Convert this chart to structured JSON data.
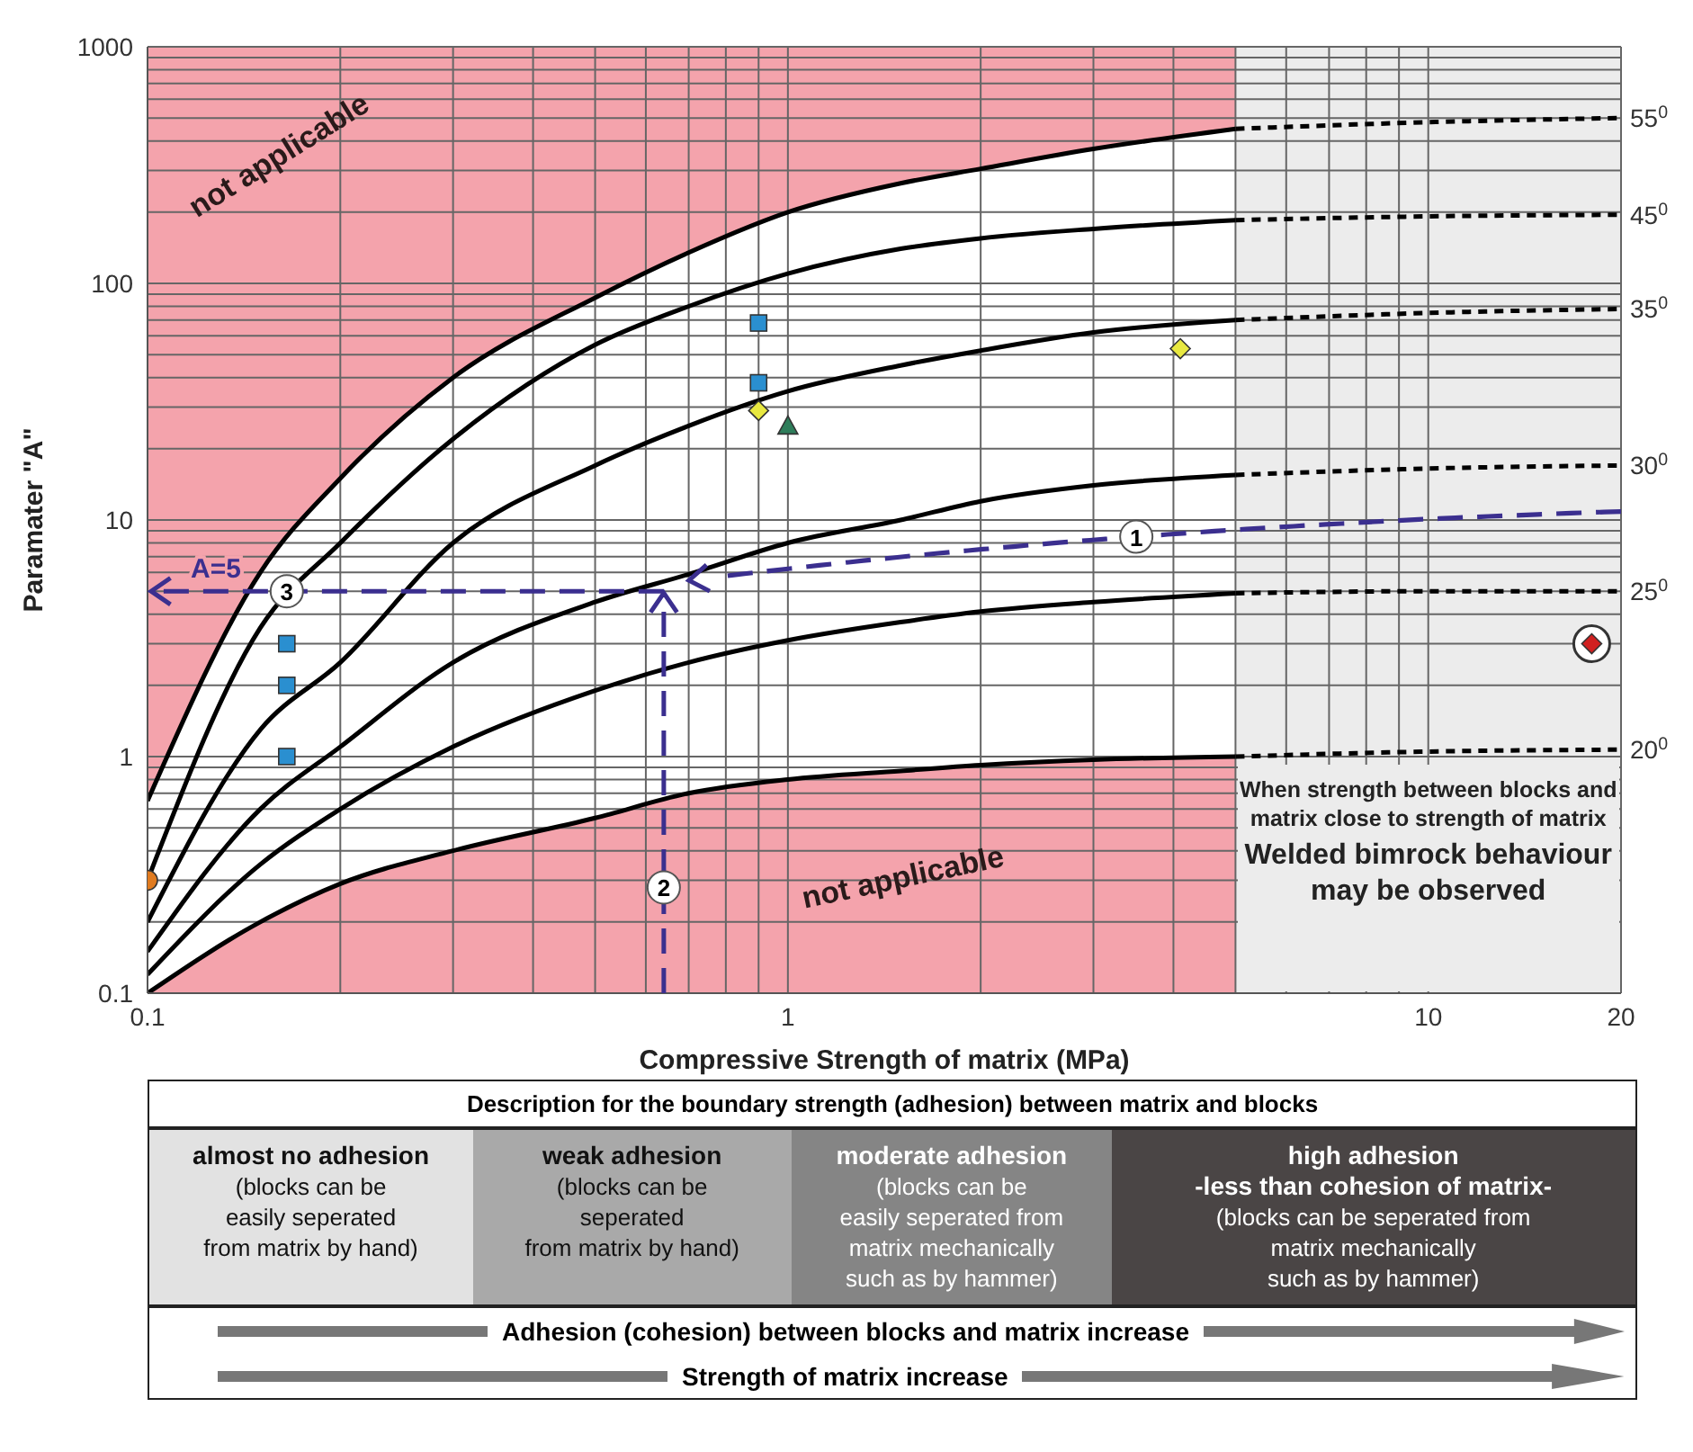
{
  "chart_data": {
    "type": "line",
    "xlabel": "Compressive Strength of matrix  (MPa)",
    "ylabel": "Paramater \"A\"",
    "log": "xy",
    "grid": true,
    "xlim": [
      0.1,
      20
    ],
    "ylim": [
      0.1,
      1000
    ],
    "xticks": [
      0.1,
      {
        "value": 0.2,
        "label": null
      },
      {
        "value": 0.3,
        "label": null
      },
      {
        "value": 0.4,
        "label": null
      },
      {
        "value": 0.5,
        "label": null
      },
      {
        "value": 0.6,
        "label": null
      },
      {
        "value": 0.7,
        "label": null
      },
      {
        "value": 0.8,
        "label": null
      },
      {
        "value": 0.9,
        "label": null
      },
      1,
      {
        "value": 2,
        "label": null
      },
      {
        "value": 3,
        "label": null
      },
      {
        "value": 4,
        "label": null
      },
      {
        "value": 5,
        "label": null
      },
      {
        "value": 6,
        "label": null
      },
      {
        "value": 7,
        "label": null
      },
      {
        "value": 8,
        "label": null
      },
      {
        "value": 9,
        "label": null
      },
      10,
      20
    ],
    "yticks": [
      0.1,
      {
        "value": 0.2,
        "label": null
      },
      {
        "value": 0.3,
        "label": null
      },
      {
        "value": 0.4,
        "label": null
      },
      {
        "value": 0.5,
        "label": null
      },
      {
        "value": 0.6,
        "label": null
      },
      {
        "value": 0.7,
        "label": null
      },
      {
        "value": 0.8,
        "label": null
      },
      {
        "value": 0.9,
        "label": null
      },
      1,
      {
        "value": 2,
        "label": null
      },
      {
        "value": 3,
        "label": null
      },
      {
        "value": 4,
        "label": null
      },
      {
        "value": 5,
        "label": null
      },
      {
        "value": 6,
        "label": null
      },
      {
        "value": 7,
        "label": null
      },
      {
        "value": 8,
        "label": null
      },
      {
        "value": 9,
        "label": null
      },
      10,
      {
        "value": 20,
        "label": null
      },
      {
        "value": 30,
        "label": null
      },
      {
        "value": 40,
        "label": null
      },
      {
        "value": 50,
        "label": null
      },
      {
        "value": 60,
        "label": null
      },
      {
        "value": 70,
        "label": null
      },
      {
        "value": 80,
        "label": null
      },
      {
        "value": 90,
        "label": null
      },
      100,
      {
        "value": 200,
        "label": null
      },
      {
        "value": 300,
        "label": null
      },
      {
        "value": 400,
        "label": null
      },
      {
        "value": 500,
        "label": null
      },
      {
        "value": 600,
        "label": null
      },
      {
        "value": 700,
        "label": null
      },
      {
        "value": 800,
        "label": null
      },
      {
        "value": 900,
        "label": null
      },
      1000
    ],
    "bands": [
      {
        "axis": "x",
        "from": 0.1,
        "to": 5,
        "color": "#f4a3ac"
      },
      {
        "axis": "x",
        "from": 5,
        "to": 20,
        "color": "#ececec"
      }
    ],
    "series": [
      {
        "color": "#000000",
        "line_style": "solid",
        "x": [
          0.1,
          0.15,
          0.2,
          0.3,
          0.5,
          0.7,
          1,
          1.5,
          2,
          3,
          5
        ],
        "values": [
          0.65,
          6,
          15,
          40,
          87,
          135,
          200,
          265,
          305,
          370,
          450
        ],
        "upper": [
          0.65,
          6,
          15,
          40,
          87,
          135,
          200,
          265,
          305,
          370,
          450
        ],
        "lower": [
          0.1,
          0.2,
          0.29,
          0.4,
          0.55,
          0.7,
          0.8,
          0.87,
          0.92,
          0.97,
          1
        ]
      },
      {
        "color": "#000000",
        "line_style": "solid",
        "x": [
          0.1,
          0.15,
          0.2,
          0.3,
          0.5,
          0.7,
          1,
          1.5,
          2,
          3,
          5
        ],
        "values": [
          0.3,
          3.5,
          8,
          22,
          55,
          80,
          110,
          140,
          155,
          170,
          185
        ]
      },
      {
        "color": "#000000",
        "line_style": "solid",
        "x": [
          0.1,
          0.15,
          0.2,
          0.3,
          0.5,
          0.7,
          1,
          1.5,
          2,
          3,
          5
        ],
        "values": [
          0.2,
          1.3,
          2.5,
          8,
          17,
          25,
          35,
          45,
          52,
          62,
          70
        ]
      },
      {
        "color": "#000000",
        "line_style": "solid",
        "x": [
          0.1,
          0.15,
          0.2,
          0.3,
          0.5,
          0.7,
          1,
          1.5,
          2,
          3,
          5
        ],
        "values": [
          0.15,
          0.6,
          1.1,
          2.5,
          4.5,
          5.9,
          8,
          10,
          12,
          14,
          15.5
        ]
      },
      {
        "color": "#000000",
        "line_style": "solid",
        "x": [
          0.1,
          0.15,
          0.2,
          0.3,
          0.5,
          0.7,
          1,
          1.5,
          2,
          3,
          5
        ],
        "values": [
          0.12,
          0.35,
          0.6,
          1.1,
          1.9,
          2.5,
          3.1,
          3.7,
          4.1,
          4.5,
          4.9
        ]
      },
      {
        "color": "#000000",
        "line_style": "solid",
        "x": [
          0.1,
          0.15,
          0.2,
          0.3,
          0.5,
          0.7,
          1,
          1.5,
          2,
          3,
          5
        ],
        "values": [
          0.1,
          0.2,
          0.29,
          0.4,
          0.55,
          0.7,
          0.8,
          0.87,
          0.92,
          0.97,
          1
        ]
      },
      {
        "name": "55$^{0}$",
        "color": "#000000",
        "line_style": "dashed",
        "x": [
          5,
          10,
          20
        ],
        "values": [
          450,
          480,
          500
        ]
      },
      {
        "name": "45$^{0}$",
        "color": "#000000",
        "line_style": "dashed",
        "x": [
          5,
          10,
          20
        ],
        "values": [
          185,
          192,
          195
        ]
      },
      {
        "name": "35$^{0}$",
        "color": "#000000",
        "line_style": "dashed",
        "x": [
          5,
          10,
          20
        ],
        "values": [
          70,
          75,
          78
        ]
      },
      {
        "name": "30$^{0}$",
        "color": "#000000",
        "line_style": "dashed",
        "x": [
          5,
          10,
          20
        ],
        "values": [
          15.5,
          16.5,
          17
        ]
      },
      {
        "name": "25$^{0}$",
        "color": "#000000",
        "line_style": "dashed",
        "x": [
          5,
          10,
          20
        ],
        "values": [
          4.9,
          5,
          5
        ]
      },
      {
        "name": "20$^{0}$",
        "color": "#000000",
        "line_style": "dashed",
        "x": [
          5,
          10,
          20
        ],
        "values": [
          1,
          1.05,
          1.07
        ]
      },
      {
        "type": "scatter",
        "marker": "square",
        "color": "#2a8fd0",
        "x": [
          0.9,
          0.9,
          0.165,
          0.165,
          0.165
        ],
        "values": [
          68,
          38,
          3,
          2,
          1
        ]
      },
      {
        "type": "scatter",
        "marker": "diamond",
        "color": "#e8e840",
        "x": [
          0.9,
          4.1
        ],
        "values": [
          29,
          53
        ]
      },
      {
        "type": "scatter",
        "marker": "triangle",
        "color": "#2e7d5a",
        "x": [
          1
        ],
        "values": [
          25
        ]
      },
      {
        "type": "scatter",
        "marker": "circle",
        "color": "#e07b20",
        "x": [
          0.1
        ],
        "values": [
          0.3
        ]
      },
      {
        "type": "scatter",
        "marker": "circle",
        "color": "#ffffff",
        "x": [
          18
        ],
        "values": [
          3
        ]
      },
      {
        "type": "scatter",
        "marker": "diamond",
        "color": "#d02020",
        "x": [
          18
        ],
        "values": [
          3
        ]
      }
    ],
    "annotations": [
      {
        "text": "1",
        "x": 3.5,
        "y": 8.5
      },
      {
        "text": "2",
        "x": 0.64,
        "y": 0.28
      },
      {
        "text": "3",
        "x": 0.165,
        "y": 5
      },
      "not applicable",
      "not applicable",
      "A=5",
      "When strength between blocks and matrix close to strength of matrix",
      "Welded bimrock behaviour may be observed",
      "Description for the boundary strength (adhesion) between matrix and blocks",
      "almost no adhesion",
      "(blocks can be\neasily seperated\nfrom matrix by hand)",
      "weak adhesion",
      "(blocks can be\nseperated\nfrom matrix by hand)",
      "moderate adhesion",
      "(blocks can be\neasily seperated from\nmatrix mechanically\nsuch as by hammer)",
      "high adhesion\n-less than cohesion of matrix-",
      "(blocks can be seperated from\nmatrix mechanically\nsuch as by hammer)",
      "Adhesion (cohesion) between blocks and matrix increase",
      "Strength of matrix increase"
    ]
  }
}
